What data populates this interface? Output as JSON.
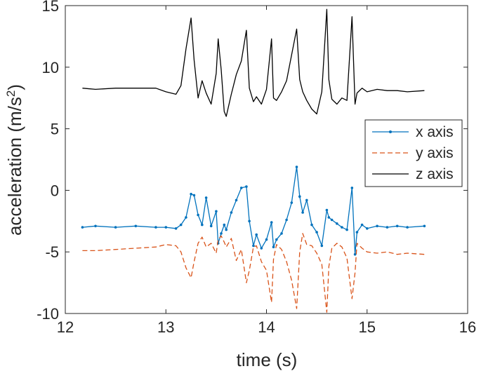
{
  "chart_data": {
    "type": "line",
    "xlabel": "time (s)",
    "ylabel": "acceleration (m/s",
    "ylabel_sup": "2",
    "ylabel_close": ")",
    "xlim": [
      12,
      16
    ],
    "ylim": [
      -10,
      15
    ],
    "xticks": [
      12,
      13,
      14,
      15,
      16
    ],
    "yticks": [
      -10,
      -5,
      0,
      5,
      10,
      15
    ],
    "legend_position": "right",
    "grid": false,
    "series": [
      {
        "name": "x axis",
        "color": "#0072BD",
        "style": "solid-dots",
        "x": [
          12.17,
          12.3,
          12.5,
          12.7,
          12.9,
          13.0,
          13.1,
          13.15,
          13.2,
          13.25,
          13.28,
          13.32,
          13.36,
          13.4,
          13.45,
          13.5,
          13.52,
          13.55,
          13.58,
          13.6,
          13.65,
          13.7,
          13.75,
          13.8,
          13.83,
          13.87,
          13.9,
          13.95,
          14.0,
          14.05,
          14.07,
          14.1,
          14.15,
          14.2,
          14.25,
          14.3,
          14.33,
          14.36,
          14.4,
          14.45,
          14.5,
          14.55,
          14.6,
          14.62,
          14.65,
          14.7,
          14.75,
          14.8,
          14.85,
          14.88,
          14.9,
          14.95,
          15.0,
          15.1,
          15.2,
          15.3,
          15.4,
          15.57
        ],
        "y": [
          -3.0,
          -2.9,
          -3.0,
          -2.9,
          -3.0,
          -3.0,
          -3.1,
          -2.8,
          -2.2,
          -0.3,
          -0.4,
          -2.0,
          -2.8,
          -0.6,
          -2.9,
          -1.7,
          -4.3,
          -3.5,
          -2.8,
          -3.2,
          -1.8,
          -0.8,
          0.2,
          0.3,
          -2.5,
          -4.5,
          -3.6,
          -4.7,
          -4.0,
          -2.6,
          -4.6,
          -4.0,
          -3.5,
          -2.4,
          -1.0,
          1.9,
          -0.5,
          -1.8,
          -0.8,
          -2.8,
          -3.4,
          -4.5,
          -1.6,
          -2.2,
          -2.4,
          -2.7,
          -3.0,
          -3.2,
          0.2,
          -5.2,
          -3.4,
          -2.8,
          -3.1,
          -2.9,
          -3.0,
          -2.9,
          -3.0,
          -2.9
        ]
      },
      {
        "name": "y axis",
        "color": "#D95319",
        "style": "dashed",
        "x": [
          12.17,
          12.3,
          12.5,
          12.7,
          12.9,
          13.0,
          13.1,
          13.15,
          13.2,
          13.25,
          13.28,
          13.32,
          13.36,
          13.4,
          13.45,
          13.5,
          13.52,
          13.55,
          13.58,
          13.6,
          13.65,
          13.7,
          13.75,
          13.8,
          13.83,
          13.87,
          13.9,
          13.95,
          14.0,
          14.05,
          14.07,
          14.1,
          14.15,
          14.2,
          14.25,
          14.3,
          14.33,
          14.36,
          14.4,
          14.45,
          14.5,
          14.55,
          14.6,
          14.62,
          14.65,
          14.7,
          14.75,
          14.8,
          14.85,
          14.88,
          14.9,
          14.95,
          15.0,
          15.1,
          15.2,
          15.3,
          15.4,
          15.57
        ],
        "y": [
          -4.9,
          -4.9,
          -4.8,
          -4.7,
          -4.6,
          -4.4,
          -4.5,
          -5.0,
          -6.3,
          -7.1,
          -5.8,
          -4.3,
          -3.8,
          -4.6,
          -4.3,
          -5.1,
          -4.0,
          -3.7,
          -4.2,
          -4.6,
          -3.9,
          -5.7,
          -4.8,
          -7.5,
          -6.5,
          -4.6,
          -4.5,
          -5.8,
          -6.5,
          -9.1,
          -5.6,
          -4.4,
          -4.8,
          -5.8,
          -7.3,
          -9.6,
          -5.0,
          -3.5,
          -4.4,
          -4.5,
          -5.1,
          -6.0,
          -9.9,
          -6.2,
          -4.7,
          -4.3,
          -4.6,
          -5.5,
          -8.8,
          -6.7,
          -4.3,
          -4.7,
          -5.0,
          -5.1,
          -5.0,
          -5.2,
          -5.1,
          -5.2
        ]
      },
      {
        "name": "z axis",
        "color": "#000000",
        "style": "solid",
        "x": [
          12.17,
          12.3,
          12.5,
          12.7,
          12.9,
          13.0,
          13.1,
          13.15,
          13.2,
          13.25,
          13.28,
          13.32,
          13.36,
          13.4,
          13.45,
          13.5,
          13.52,
          13.55,
          13.58,
          13.6,
          13.65,
          13.7,
          13.75,
          13.8,
          13.83,
          13.87,
          13.9,
          13.95,
          14.0,
          14.05,
          14.07,
          14.1,
          14.15,
          14.2,
          14.25,
          14.3,
          14.33,
          14.36,
          14.4,
          14.45,
          14.5,
          14.55,
          14.6,
          14.62,
          14.65,
          14.7,
          14.75,
          14.8,
          14.85,
          14.88,
          14.9,
          14.95,
          15.0,
          15.1,
          15.2,
          15.3,
          15.4,
          15.57
        ],
        "y": [
          8.3,
          8.2,
          8.3,
          8.3,
          8.3,
          8.0,
          7.8,
          8.5,
          11.5,
          14.0,
          10.6,
          7.5,
          8.9,
          7.9,
          7.0,
          9.5,
          12.3,
          9.8,
          6.4,
          6.0,
          7.8,
          9.4,
          10.5,
          13.0,
          8.3,
          7.2,
          7.6,
          7.0,
          8.2,
          12.3,
          7.5,
          7.3,
          8.0,
          8.9,
          11.0,
          13.1,
          9.0,
          8.0,
          7.3,
          6.6,
          6.2,
          8.0,
          14.7,
          9.0,
          7.4,
          7.0,
          7.5,
          7.3,
          14.1,
          7.0,
          7.9,
          8.3,
          8.0,
          8.2,
          8.1,
          8.1,
          8.0,
          8.1
        ]
      }
    ]
  }
}
